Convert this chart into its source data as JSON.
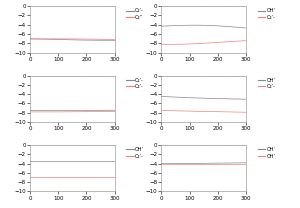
{
  "nrows": 3,
  "ncols": 2,
  "xlim": [
    0,
    300
  ],
  "ylim": [
    -10,
    0
  ],
  "yticks": [
    0,
    -2,
    -4,
    -6,
    -8,
    -10
  ],
  "xticks": [
    0,
    100,
    200,
    300
  ],
  "subplots": [
    {
      "legend": [
        {
          "label": "O₂ʹ-"
        },
        {
          "label": "O₂ʹʹ"
        }
      ],
      "line1_level": -7.0,
      "line1_noise": 0.15,
      "line1_freq": 0.05,
      "line2_level": -7.3,
      "line2_noise": 0.15,
      "line2_freq": 0.05,
      "line1_color": "#888888",
      "line2_color": "#e8857a"
    },
    {
      "legend": [
        {
          "label": "OHʹ"
        },
        {
          "label": "O₂ʹ-"
        }
      ],
      "line1_level": -4.5,
      "line1_noise": 0.25,
      "line1_freq": 0.08,
      "line2_level": -7.8,
      "line2_noise": 0.2,
      "line2_freq": 0.08,
      "line1_color": "#888888",
      "line2_color": "#e8857a"
    },
    {
      "legend": [
        {
          "label": "O₂ʹ-"
        },
        {
          "label": "O₂ʹ-"
        }
      ],
      "line1_level": -7.5,
      "line1_noise": 0.08,
      "line1_freq": 0.04,
      "line2_level": -7.7,
      "line2_noise": 0.08,
      "line2_freq": 0.04,
      "line1_color": "#888888",
      "line2_color": "#e8857a"
    },
    {
      "legend": [
        {
          "label": "OHʹ"
        },
        {
          "label": "O₂ʹ-"
        }
      ],
      "line1_level": -4.8,
      "line1_noise": 0.25,
      "line1_freq": 0.08,
      "line2_level": -7.8,
      "line2_noise": 0.2,
      "line2_freq": 0.06,
      "line1_color": "#888888",
      "line2_color": "#e8857a"
    },
    {
      "legend": [
        {
          "label": "OHʹ"
        },
        {
          "label": "O₂ʹ-"
        }
      ],
      "line1_level": -3.5,
      "line1_noise": 0.0,
      "line1_freq": 0.0,
      "line2_level": -7.0,
      "line2_noise": 0.0,
      "line2_freq": 0.0,
      "line1_color": "#888888",
      "line2_color": "#e8857a"
    },
    {
      "legend": [
        {
          "label": "OHʹ"
        },
        {
          "label": "OHʹ"
        }
      ],
      "line1_level": -4.0,
      "line1_noise": 0.1,
      "line1_freq": 0.04,
      "line2_level": -4.3,
      "line2_noise": 0.1,
      "line2_freq": 0.04,
      "line1_color": "#888888",
      "line2_color": "#e8857a"
    }
  ],
  "background_color": "#ffffff",
  "dotted_color": "#aaaaaa",
  "dotted_line_y": 0,
  "figsize": [
    3.0,
    2.08
  ],
  "dpi": 100
}
